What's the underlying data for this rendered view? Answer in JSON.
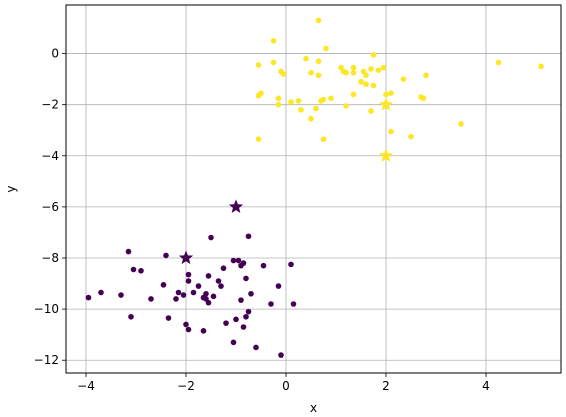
{
  "chart_data": {
    "type": "scatter",
    "title": "",
    "xlabel": "x",
    "ylabel": "y",
    "xlim": [
      -4.4,
      5.5
    ],
    "ylim": [
      -12.5,
      1.9
    ],
    "xticks": [
      -4,
      -2,
      0,
      2,
      4
    ],
    "yticks": [
      0,
      -2,
      -4,
      -6,
      -8,
      -10,
      -12
    ],
    "grid": true,
    "colors": {
      "purple": "#440154",
      "yellow": "#fde725",
      "grid": "#b0b0b0"
    },
    "series": [
      {
        "color": "#fde725",
        "marker": "circle",
        "points": [
          [
            -0.25,
            0.5
          ],
          [
            0.65,
            1.3
          ],
          [
            0.8,
            0.2
          ],
          [
            1.75,
            -0.05
          ],
          [
            -0.55,
            -0.45
          ],
          [
            -0.25,
            -0.35
          ],
          [
            0.4,
            -0.2
          ],
          [
            0.65,
            -0.3
          ],
          [
            -0.1,
            -0.7
          ],
          [
            -0.05,
            -0.8
          ],
          [
            0.5,
            -0.75
          ],
          [
            0.65,
            -0.85
          ],
          [
            1.1,
            -0.55
          ],
          [
            1.2,
            -0.75
          ],
          [
            1.15,
            -0.7
          ],
          [
            1.35,
            -0.55
          ],
          [
            1.35,
            -0.75
          ],
          [
            1.55,
            -0.7
          ],
          [
            1.7,
            -0.6
          ],
          [
            1.85,
            -0.65
          ],
          [
            1.95,
            -0.55
          ],
          [
            1.6,
            -0.85
          ],
          [
            1.5,
            -1.1
          ],
          [
            1.6,
            -1.2
          ],
          [
            1.75,
            -1.25
          ],
          [
            2.35,
            -1.0
          ],
          [
            2.8,
            -0.85
          ],
          [
            4.25,
            -0.35
          ],
          [
            5.1,
            -0.5
          ],
          [
            -0.5,
            -1.55
          ],
          [
            -0.55,
            -1.65
          ],
          [
            -0.15,
            -1.75
          ],
          [
            -0.15,
            -2.0
          ],
          [
            0.1,
            -1.9
          ],
          [
            0.25,
            -1.85
          ],
          [
            0.3,
            -2.2
          ],
          [
            0.5,
            -2.55
          ],
          [
            0.6,
            -2.15
          ],
          [
            0.7,
            -1.85
          ],
          [
            0.75,
            -1.8
          ],
          [
            0.9,
            -1.75
          ],
          [
            1.2,
            -2.05
          ],
          [
            1.35,
            -1.6
          ],
          [
            1.7,
            -2.25
          ],
          [
            2.0,
            -1.6
          ],
          [
            2.1,
            -1.55
          ],
          [
            2.75,
            -1.75
          ],
          [
            2.7,
            -1.7
          ],
          [
            0.75,
            -3.35
          ],
          [
            -0.55,
            -3.35
          ],
          [
            2.1,
            -3.05
          ],
          [
            2.5,
            -3.25
          ],
          [
            3.5,
            -2.75
          ]
        ]
      },
      {
        "color": "#440154",
        "marker": "circle",
        "points": [
          [
            -3.95,
            -9.55
          ],
          [
            -3.7,
            -9.35
          ],
          [
            -3.3,
            -9.45
          ],
          [
            -3.15,
            -7.75
          ],
          [
            -3.05,
            -8.45
          ],
          [
            -3.1,
            -10.3
          ],
          [
            -2.9,
            -8.5
          ],
          [
            -2.7,
            -9.6
          ],
          [
            -2.4,
            -7.9
          ],
          [
            -2.45,
            -9.05
          ],
          [
            -2.35,
            -10.35
          ],
          [
            -2.15,
            -9.35
          ],
          [
            -2.2,
            -9.6
          ],
          [
            -2.05,
            -9.45
          ],
          [
            -1.95,
            -8.65
          ],
          [
            -1.95,
            -8.9
          ],
          [
            -2.0,
            -10.6
          ],
          [
            -1.95,
            -10.8
          ],
          [
            -1.85,
            -9.35
          ],
          [
            -1.75,
            -9.1
          ],
          [
            -1.65,
            -9.55
          ],
          [
            -1.6,
            -9.6
          ],
          [
            -1.6,
            -9.4
          ],
          [
            -1.55,
            -9.75
          ],
          [
            -1.55,
            -8.7
          ],
          [
            -1.5,
            -7.2
          ],
          [
            -1.45,
            -9.5
          ],
          [
            -1.65,
            -10.85
          ],
          [
            -1.35,
            -8.9
          ],
          [
            -1.3,
            -9.1
          ],
          [
            -1.25,
            -8.4
          ],
          [
            -1.2,
            -10.55
          ],
          [
            -1.05,
            -8.1
          ],
          [
            -1.05,
            -11.3
          ],
          [
            -1.0,
            -10.4
          ],
          [
            -0.95,
            -8.1
          ],
          [
            -0.9,
            -8.3
          ],
          [
            -0.85,
            -8.2
          ],
          [
            -0.9,
            -9.65
          ],
          [
            -0.85,
            -10.7
          ],
          [
            -0.8,
            -10.3
          ],
          [
            -0.8,
            -8.8
          ],
          [
            -0.75,
            -7.15
          ],
          [
            -0.75,
            -10.1
          ],
          [
            -0.7,
            -9.4
          ],
          [
            -0.6,
            -11.5
          ],
          [
            -0.45,
            -8.3
          ],
          [
            -0.3,
            -9.8
          ],
          [
            -0.15,
            -9.1
          ],
          [
            -0.1,
            -11.8
          ],
          [
            0.1,
            -8.25
          ],
          [
            0.15,
            -9.8
          ]
        ]
      }
    ],
    "centers": [
      {
        "color": "#fde725",
        "marker": "star",
        "points": [
          [
            2.0,
            -2.0
          ],
          [
            2.0,
            -4.0
          ]
        ]
      },
      {
        "color": "#440154",
        "marker": "star",
        "points": [
          [
            -1.0,
            -6.0
          ],
          [
            -2.0,
            -8.0
          ]
        ]
      }
    ]
  }
}
